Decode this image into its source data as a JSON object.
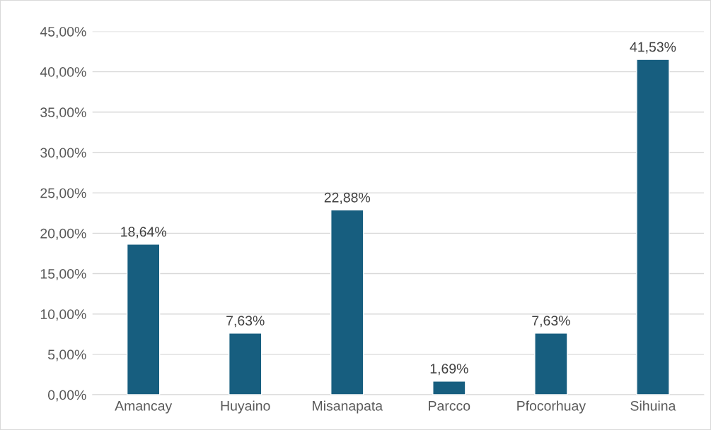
{
  "chart_data": {
    "type": "bar",
    "categories": [
      "Amancay",
      "Huyaino",
      "Misanapata",
      "Parcco",
      "Pfocorhuay",
      "Sihuina"
    ],
    "values": [
      18.64,
      7.63,
      22.88,
      1.69,
      7.63,
      41.53
    ],
    "value_labels": [
      "18,64%",
      "7,63%",
      "22,88%",
      "1,69%",
      "7,63%",
      "41,53%"
    ],
    "color": "#175e7f",
    "ylim": [
      0,
      45
    ],
    "yticks": [
      {
        "value": 0,
        "label": "0,00%"
      },
      {
        "value": 5,
        "label": "5,00%"
      },
      {
        "value": 10,
        "label": "10,00%"
      },
      {
        "value": 15,
        "label": "15,00%"
      },
      {
        "value": 20,
        "label": "20,00%"
      },
      {
        "value": 25,
        "label": "25,00%"
      },
      {
        "value": 30,
        "label": "30,00%"
      },
      {
        "value": 35,
        "label": "35,00%"
      },
      {
        "value": 40,
        "label": "40,00%"
      },
      {
        "value": 45,
        "label": "45,00%"
      }
    ],
    "grid": "y"
  }
}
